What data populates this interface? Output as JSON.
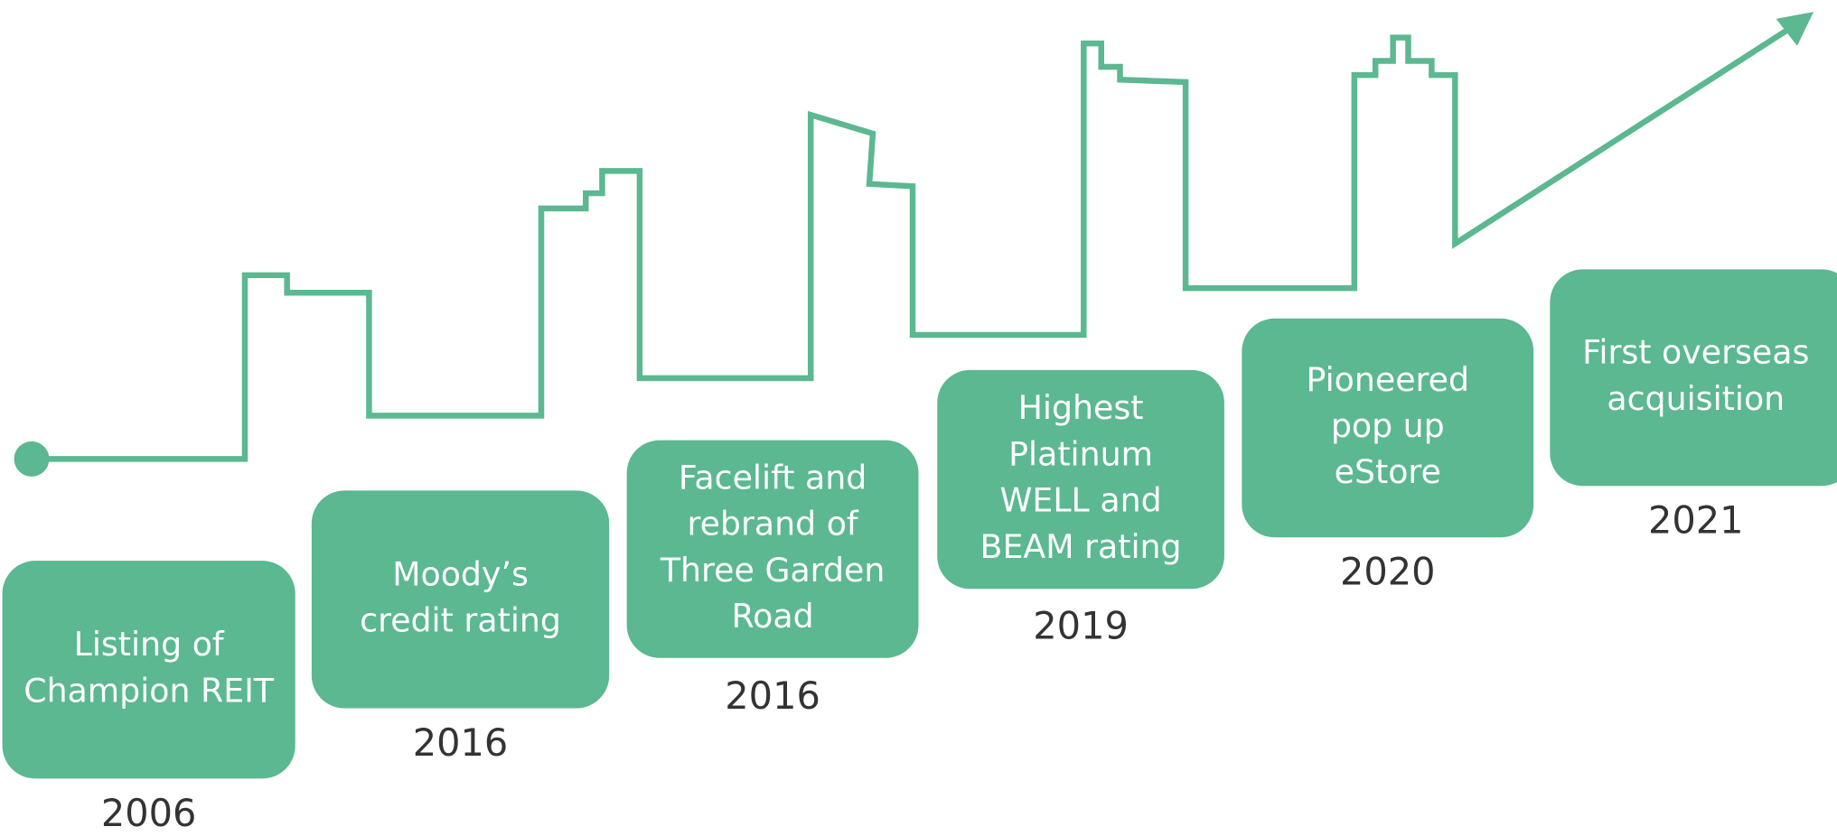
{
  "milestones": [
    {
      "lines": [
        "Listing of",
        "Champion REIT"
      ],
      "year": "2006"
    },
    {
      "lines": [
        "Moody’s",
        "credit rating"
      ],
      "year": "2016"
    },
    {
      "lines": [
        "Facelift and",
        "rebrand of",
        "Three Garden",
        "Road"
      ],
      "year": "2016"
    },
    {
      "lines": [
        "Highest",
        "Platinum",
        "WELL and",
        "BEAM rating"
      ],
      "year": "2019"
    },
    {
      "lines": [
        "Pioneered",
        "pop up",
        "eStore"
      ],
      "year": "2020"
    },
    {
      "lines": [
        "First overseas",
        "acquisition"
      ],
      "year": "2021"
    }
  ]
}
